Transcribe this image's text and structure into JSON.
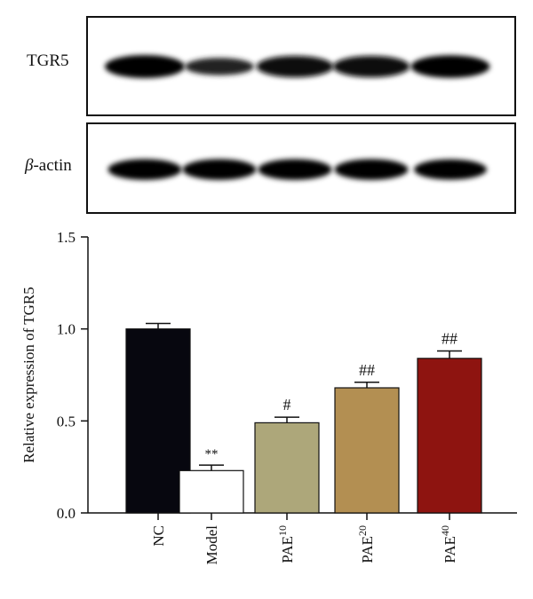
{
  "blots": [
    {
      "label": "TGR5",
      "italic_prefix": "",
      "band_intensity": [
        1.0,
        0.45,
        0.85,
        0.85,
        0.95
      ]
    },
    {
      "label": "-actin",
      "italic_prefix": "β",
      "band_intensity": [
        0.95,
        0.95,
        0.95,
        0.95,
        0.9
      ]
    }
  ],
  "chart_data": {
    "type": "bar",
    "ylabel": "Relative expression of TGR5",
    "ylim": [
      0,
      1.5
    ],
    "yticks": [
      "0.0",
      "0.5",
      "1.0",
      "1.5"
    ],
    "categories": [
      {
        "base": "NC",
        "sup": ""
      },
      {
        "base": "Model",
        "sup": ""
      },
      {
        "base": "PAE",
        "sup": "10"
      },
      {
        "base": "PAE",
        "sup": "20"
      },
      {
        "base": "PAE",
        "sup": "40"
      }
    ],
    "values": [
      1.0,
      0.23,
      0.49,
      0.68,
      0.84
    ],
    "errors": [
      0.03,
      0.03,
      0.03,
      0.03,
      0.04
    ],
    "annotations": [
      "",
      "**",
      "#",
      "##",
      "##"
    ],
    "colors": [
      "#07070f",
      "#ffffff",
      "#ada77a",
      "#b38f52",
      "#8e1410"
    ]
  }
}
